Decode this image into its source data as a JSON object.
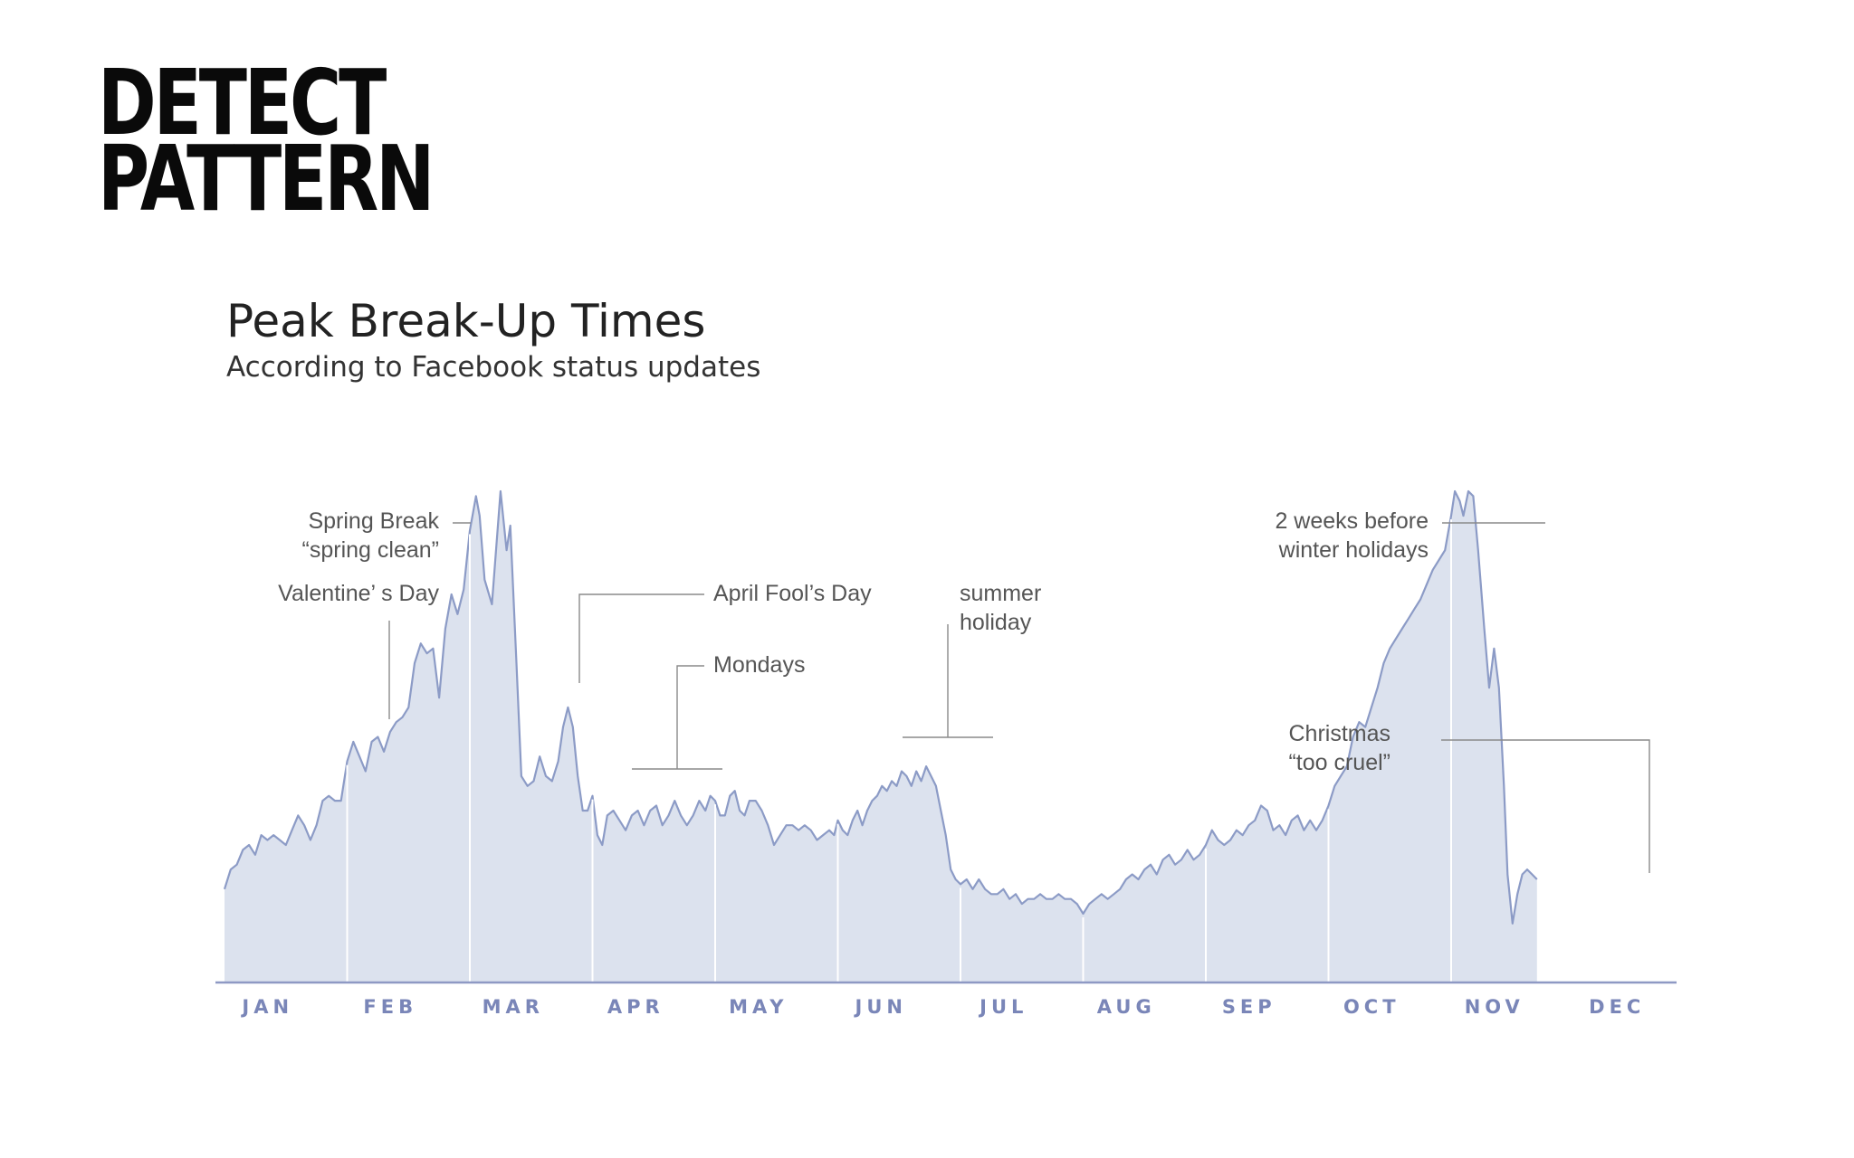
{
  "headline": {
    "line1": "DETECT",
    "line2": "PATTERN"
  },
  "chart_data": {
    "type": "area",
    "title": "Peak Break-Up Times",
    "subtitle": "According to Facebook status updates",
    "xlabel": "",
    "ylabel": "",
    "grid": false,
    "legend": "none",
    "x_categories": [
      "JAN",
      "FEB",
      "MAR",
      "APR",
      "MAY",
      "JUN",
      "JUL",
      "AUG",
      "SEP",
      "OCT",
      "NOV",
      "DEC"
    ],
    "x_domain": [
      0,
      12
    ],
    "y_domain": [
      0,
      100
    ],
    "colors": {
      "fill": "#dce2ee",
      "line": "#8c9bc6",
      "axis": "#8e99c4",
      "tick_label": "#7a86b8",
      "annotation_line": "#8a8a8a",
      "annotation_text": "#555555",
      "month_divider": "#ffffff"
    },
    "points": [
      [
        0.0,
        19
      ],
      [
        0.05,
        23
      ],
      [
        0.1,
        24
      ],
      [
        0.15,
        27
      ],
      [
        0.2,
        28
      ],
      [
        0.25,
        26
      ],
      [
        0.3,
        30
      ],
      [
        0.35,
        29
      ],
      [
        0.4,
        30
      ],
      [
        0.45,
        29
      ],
      [
        0.5,
        28
      ],
      [
        0.55,
        31
      ],
      [
        0.6,
        34
      ],
      [
        0.65,
        32
      ],
      [
        0.7,
        29
      ],
      [
        0.75,
        32
      ],
      [
        0.8,
        37
      ],
      [
        0.85,
        38
      ],
      [
        0.9,
        37
      ],
      [
        0.95,
        37
      ],
      [
        1.0,
        45
      ],
      [
        1.05,
        49
      ],
      [
        1.1,
        46
      ],
      [
        1.15,
        43
      ],
      [
        1.2,
        49
      ],
      [
        1.25,
        50
      ],
      [
        1.3,
        47
      ],
      [
        1.35,
        51
      ],
      [
        1.4,
        53
      ],
      [
        1.45,
        54
      ],
      [
        1.5,
        56
      ],
      [
        1.55,
        65
      ],
      [
        1.6,
        69
      ],
      [
        1.65,
        67
      ],
      [
        1.7,
        68
      ],
      [
        1.75,
        58
      ],
      [
        1.8,
        72
      ],
      [
        1.85,
        79
      ],
      [
        1.9,
        75
      ],
      [
        1.95,
        80
      ],
      [
        2.0,
        92
      ],
      [
        2.05,
        99
      ],
      [
        2.08,
        95
      ],
      [
        2.12,
        82
      ],
      [
        2.18,
        77
      ],
      [
        2.25,
        100
      ],
      [
        2.3,
        88
      ],
      [
        2.33,
        93
      ],
      [
        2.38,
        65
      ],
      [
        2.42,
        42
      ],
      [
        2.47,
        40
      ],
      [
        2.52,
        41
      ],
      [
        2.57,
        46
      ],
      [
        2.62,
        42
      ],
      [
        2.67,
        41
      ],
      [
        2.72,
        45
      ],
      [
        2.76,
        52
      ],
      [
        2.8,
        56
      ],
      [
        2.84,
        52
      ],
      [
        2.88,
        42
      ],
      [
        2.92,
        35
      ],
      [
        2.96,
        35
      ],
      [
        3.0,
        38
      ],
      [
        3.04,
        30
      ],
      [
        3.08,
        28
      ],
      [
        3.12,
        34
      ],
      [
        3.17,
        35
      ],
      [
        3.22,
        33
      ],
      [
        3.27,
        31
      ],
      [
        3.32,
        34
      ],
      [
        3.37,
        35
      ],
      [
        3.42,
        32
      ],
      [
        3.47,
        35
      ],
      [
        3.52,
        36
      ],
      [
        3.57,
        32
      ],
      [
        3.62,
        34
      ],
      [
        3.67,
        37
      ],
      [
        3.72,
        34
      ],
      [
        3.77,
        32
      ],
      [
        3.82,
        34
      ],
      [
        3.87,
        37
      ],
      [
        3.92,
        35
      ],
      [
        3.96,
        38
      ],
      [
        4.0,
        37
      ],
      [
        4.04,
        34
      ],
      [
        4.08,
        34
      ],
      [
        4.12,
        38
      ],
      [
        4.16,
        39
      ],
      [
        4.2,
        35
      ],
      [
        4.24,
        34
      ],
      [
        4.28,
        37
      ],
      [
        4.33,
        37
      ],
      [
        4.38,
        35
      ],
      [
        4.43,
        32
      ],
      [
        4.48,
        28
      ],
      [
        4.53,
        30
      ],
      [
        4.58,
        32
      ],
      [
        4.63,
        32
      ],
      [
        4.68,
        31
      ],
      [
        4.73,
        32
      ],
      [
        4.78,
        31
      ],
      [
        4.83,
        29
      ],
      [
        4.88,
        30
      ],
      [
        4.93,
        31
      ],
      [
        4.97,
        30
      ],
      [
        5.0,
        33
      ],
      [
        5.04,
        31
      ],
      [
        5.08,
        30
      ],
      [
        5.12,
        33
      ],
      [
        5.16,
        35
      ],
      [
        5.2,
        32
      ],
      [
        5.24,
        35
      ],
      [
        5.28,
        37
      ],
      [
        5.32,
        38
      ],
      [
        5.36,
        40
      ],
      [
        5.4,
        39
      ],
      [
        5.44,
        41
      ],
      [
        5.48,
        40
      ],
      [
        5.52,
        43
      ],
      [
        5.56,
        42
      ],
      [
        5.6,
        40
      ],
      [
        5.64,
        43
      ],
      [
        5.68,
        41
      ],
      [
        5.72,
        44
      ],
      [
        5.76,
        42
      ],
      [
        5.8,
        40
      ],
      [
        5.84,
        35
      ],
      [
        5.88,
        30
      ],
      [
        5.92,
        23
      ],
      [
        5.96,
        21
      ],
      [
        6.0,
        20
      ],
      [
        6.05,
        21
      ],
      [
        6.1,
        19
      ],
      [
        6.15,
        21
      ],
      [
        6.2,
        19
      ],
      [
        6.25,
        18
      ],
      [
        6.3,
        18
      ],
      [
        6.35,
        19
      ],
      [
        6.4,
        17
      ],
      [
        6.45,
        18
      ],
      [
        6.5,
        16
      ],
      [
        6.55,
        17
      ],
      [
        6.6,
        17
      ],
      [
        6.65,
        18
      ],
      [
        6.7,
        17
      ],
      [
        6.75,
        17
      ],
      [
        6.8,
        18
      ],
      [
        6.85,
        17
      ],
      [
        6.9,
        17
      ],
      [
        6.95,
        16
      ],
      [
        7.0,
        14
      ],
      [
        7.05,
        16
      ],
      [
        7.1,
        17
      ],
      [
        7.15,
        18
      ],
      [
        7.2,
        17
      ],
      [
        7.25,
        18
      ],
      [
        7.3,
        19
      ],
      [
        7.35,
        21
      ],
      [
        7.4,
        22
      ],
      [
        7.45,
        21
      ],
      [
        7.5,
        23
      ],
      [
        7.55,
        24
      ],
      [
        7.6,
        22
      ],
      [
        7.65,
        25
      ],
      [
        7.7,
        26
      ],
      [
        7.75,
        24
      ],
      [
        7.8,
        25
      ],
      [
        7.85,
        27
      ],
      [
        7.9,
        25
      ],
      [
        7.95,
        26
      ],
      [
        8.0,
        28
      ],
      [
        8.05,
        31
      ],
      [
        8.1,
        29
      ],
      [
        8.15,
        28
      ],
      [
        8.2,
        29
      ],
      [
        8.25,
        31
      ],
      [
        8.3,
        30
      ],
      [
        8.35,
        32
      ],
      [
        8.4,
        33
      ],
      [
        8.45,
        36
      ],
      [
        8.5,
        35
      ],
      [
        8.55,
        31
      ],
      [
        8.6,
        32
      ],
      [
        8.65,
        30
      ],
      [
        8.7,
        33
      ],
      [
        8.75,
        34
      ],
      [
        8.8,
        31
      ],
      [
        8.85,
        33
      ],
      [
        8.9,
        31
      ],
      [
        8.95,
        33
      ],
      [
        9.0,
        36
      ],
      [
        9.05,
        40
      ],
      [
        9.1,
        42
      ],
      [
        9.15,
        44
      ],
      [
        9.2,
        50
      ],
      [
        9.25,
        53
      ],
      [
        9.3,
        52
      ],
      [
        9.35,
        56
      ],
      [
        9.4,
        60
      ],
      [
        9.45,
        65
      ],
      [
        9.5,
        68
      ],
      [
        9.55,
        70
      ],
      [
        9.6,
        72
      ],
      [
        9.65,
        74
      ],
      [
        9.7,
        76
      ],
      [
        9.75,
        78
      ],
      [
        9.8,
        81
      ],
      [
        9.85,
        84
      ],
      [
        9.9,
        86
      ],
      [
        9.95,
        88
      ],
      [
        10.0,
        95
      ],
      [
        10.03,
        100
      ],
      [
        10.07,
        98
      ],
      [
        10.1,
        95
      ],
      [
        10.14,
        100
      ],
      [
        10.18,
        99
      ],
      [
        10.22,
        88
      ],
      [
        10.27,
        72
      ],
      [
        10.31,
        60
      ],
      [
        10.35,
        68
      ],
      [
        10.39,
        60
      ],
      [
        10.43,
        40
      ],
      [
        10.46,
        22
      ],
      [
        10.5,
        12
      ],
      [
        10.54,
        18
      ],
      [
        10.58,
        22
      ],
      [
        10.62,
        23
      ],
      [
        10.66,
        22
      ],
      [
        10.7,
        21
      ]
    ],
    "data_note": "values estimated from the shape of the curve; y axis is unlabeled",
    "annotations": [
      {
        "id": "valentines",
        "lines": [
          "Valentine’ s Day"
        ]
      },
      {
        "id": "spring-break",
        "lines": [
          "Spring Break",
          "“spring clean”"
        ]
      },
      {
        "id": "april-fools",
        "lines": [
          "April Fool’s Day"
        ]
      },
      {
        "id": "mondays",
        "lines": [
          "Mondays"
        ]
      },
      {
        "id": "summer-holiday",
        "lines": [
          "summer",
          "holiday"
        ]
      },
      {
        "id": "two-weeks",
        "lines": [
          "2 weeks before",
          "winter holidays"
        ]
      },
      {
        "id": "christmas",
        "lines": [
          "Christmas",
          "“too cruel”"
        ]
      }
    ]
  }
}
